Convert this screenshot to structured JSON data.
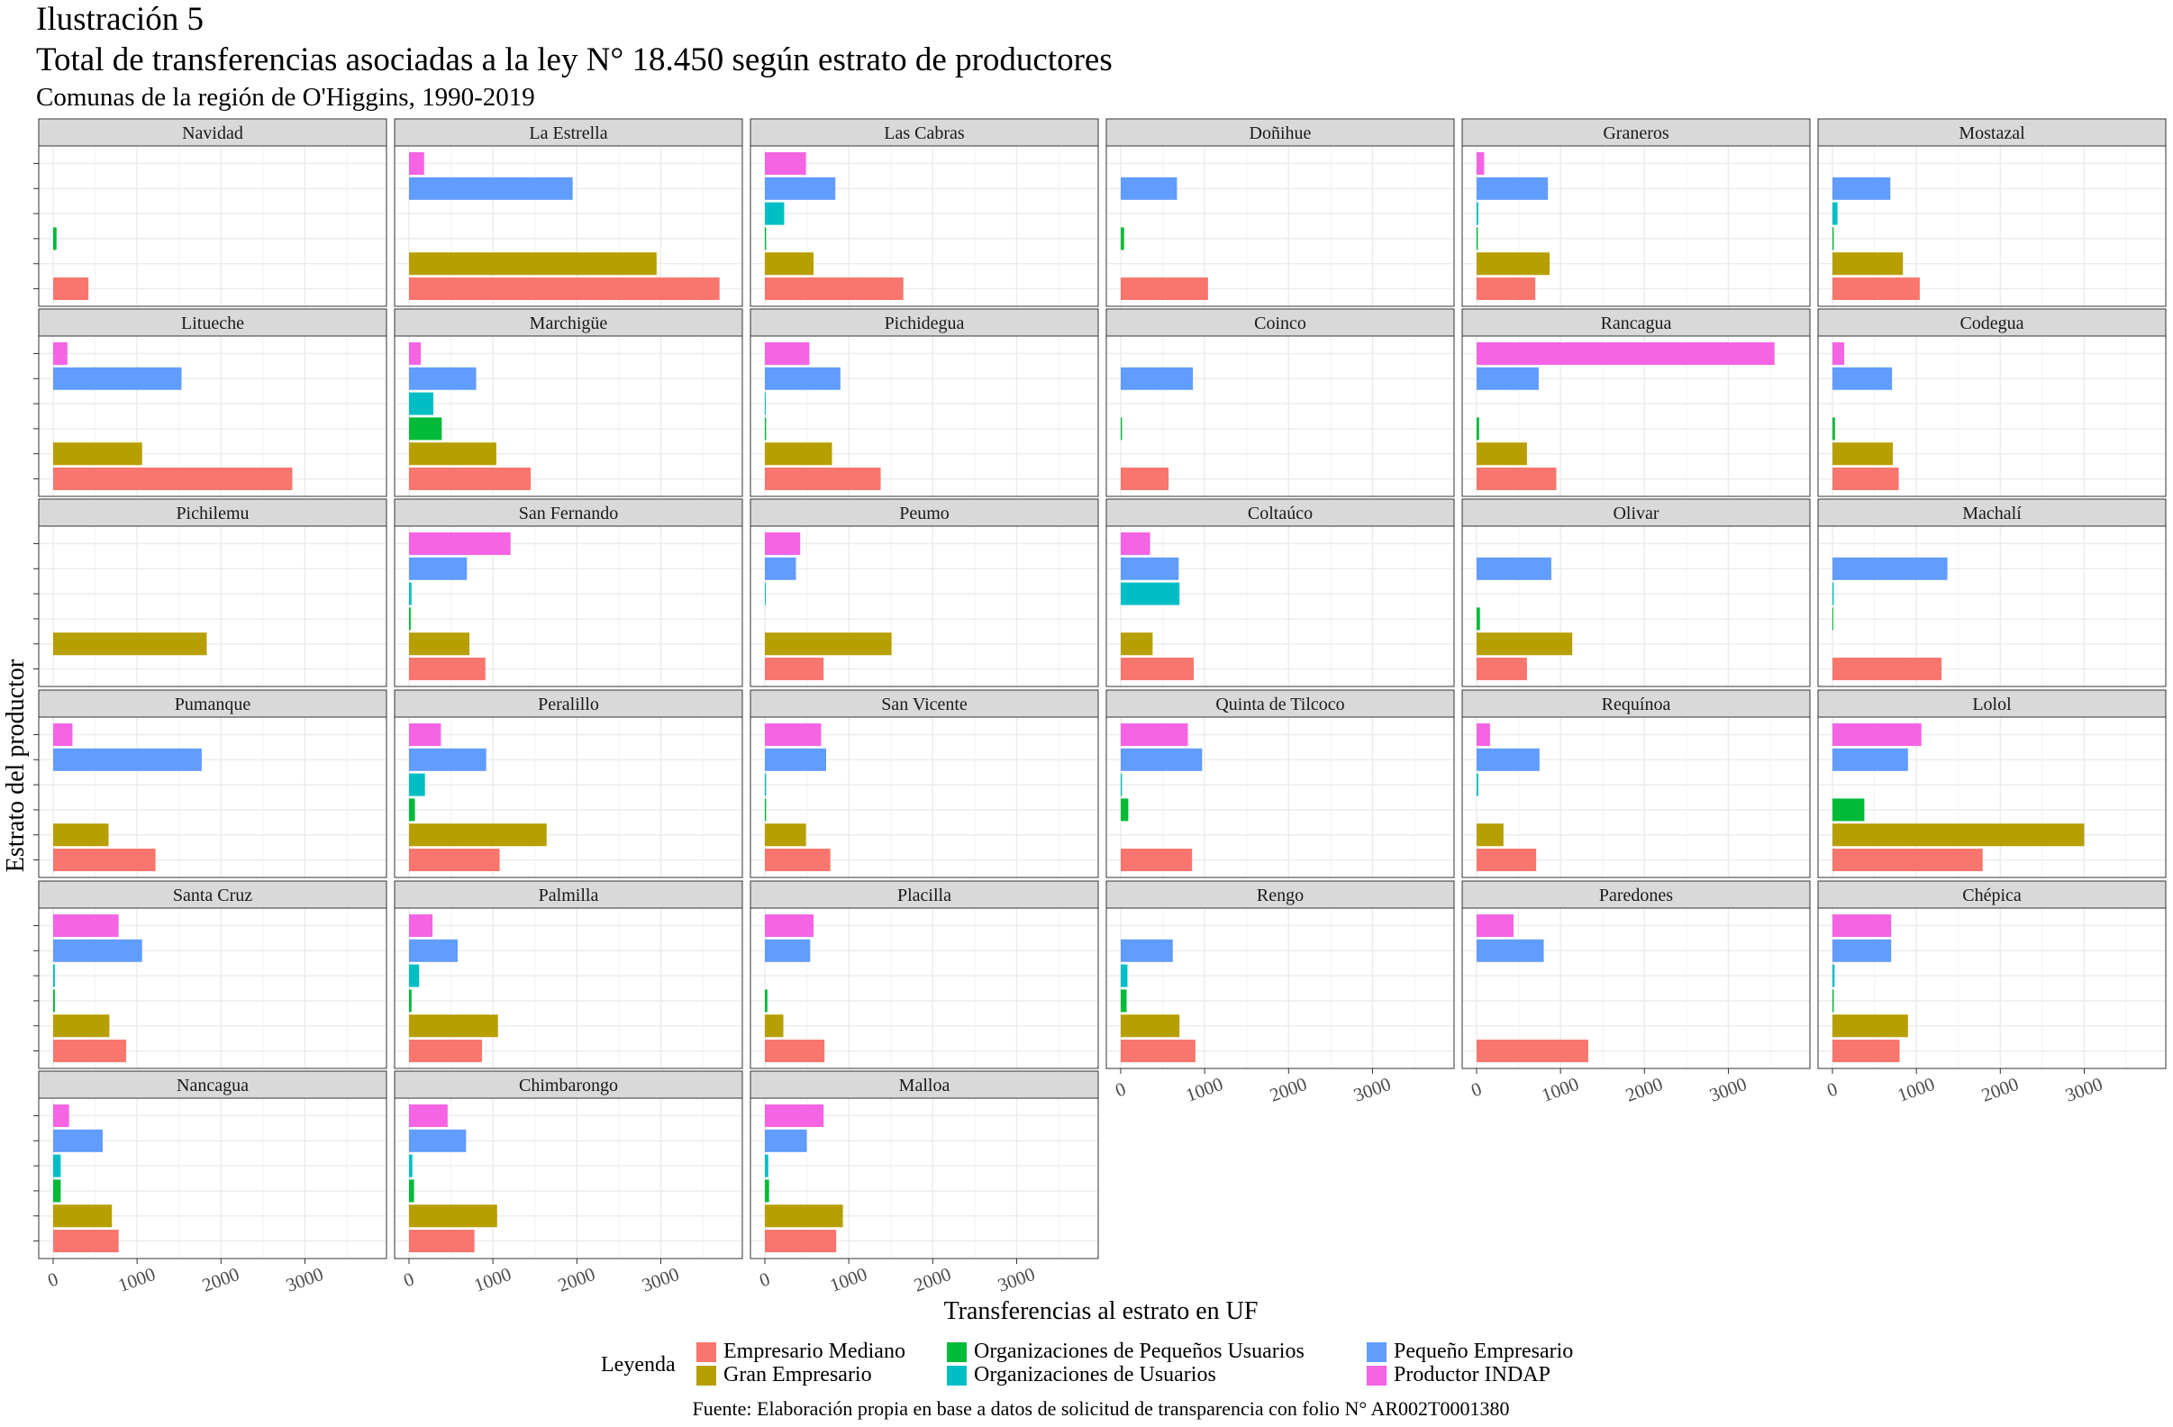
{
  "header": {
    "label": "Ilustración 5",
    "title": "Total de transferencias asociadas a la ley N° 18.450 según estrato de productores",
    "subtitle": "Comunas de la región de O'Higgins, 1990-2019"
  },
  "caption": "Fuente: Elaboración propia en base a datos de solicitud de transparencia con folio N° AR002T0001380",
  "legend": {
    "title": "Leyenda",
    "items": [
      {
        "label": "Empresario Mediano",
        "color": "#F8766D"
      },
      {
        "label": "Gran Empresario",
        "color": "#B79F00"
      },
      {
        "label": "Organizaciones de Pequeños Usuarios",
        "color": "#00BA38"
      },
      {
        "label": "Organizaciones de Usuarios",
        "color": "#00BFC4"
      },
      {
        "label": "Pequeño Empresario",
        "color": "#619CFF"
      },
      {
        "label": "Productor INDAP",
        "color": "#F564E3"
      }
    ]
  },
  "chart_data": {
    "type": "bar",
    "orientation": "horizontal",
    "faceted": true,
    "xlabel": "Transferencias al estrato en UF",
    "ylabel": "Estrato del productor",
    "xlim": [
      0,
      3800
    ],
    "xticks": [
      "0",
      "1000",
      "2000",
      "3000"
    ],
    "grid": true,
    "legend_position": "bottom",
    "categories": [
      "Empresario Mediano",
      "Gran Empresario",
      "Organizaciones de Pequeños Usuarios",
      "Organizaciones de Usuarios",
      "Pequeño Empresario",
      "Productor INDAP"
    ],
    "facets": [
      {
        "name": "Navidad",
        "values": [
          420,
          0,
          40,
          0,
          0,
          0
        ]
      },
      {
        "name": "La Estrella",
        "values": [
          3700,
          2950,
          0,
          0,
          1950,
          180
        ]
      },
      {
        "name": "Las Cabras",
        "values": [
          1650,
          580,
          15,
          230,
          840,
          490
        ]
      },
      {
        "name": "Doñihue",
        "values": [
          1040,
          0,
          40,
          0,
          670,
          0
        ]
      },
      {
        "name": "Graneros",
        "values": [
          700,
          870,
          15,
          20,
          850,
          90
        ]
      },
      {
        "name": "Mostazal",
        "values": [
          1040,
          840,
          15,
          60,
          690,
          0
        ]
      },
      {
        "name": "Litueche",
        "values": [
          2850,
          1060,
          0,
          0,
          1530,
          170
        ]
      },
      {
        "name": "Marchigüe",
        "values": [
          1450,
          1040,
          390,
          290,
          800,
          140
        ]
      },
      {
        "name": "Pichidegua",
        "values": [
          1380,
          800,
          15,
          10,
          900,
          530
        ]
      },
      {
        "name": "Coinco",
        "values": [
          570,
          0,
          15,
          0,
          860,
          0
        ]
      },
      {
        "name": "Rancagua",
        "values": [
          950,
          600,
          30,
          0,
          740,
          3550
        ]
      },
      {
        "name": "Codegua",
        "values": [
          790,
          720,
          30,
          0,
          710,
          140
        ]
      },
      {
        "name": "Pichilemu",
        "values": [
          0,
          1830,
          0,
          0,
          0,
          0
        ]
      },
      {
        "name": "San Fernando",
        "values": [
          910,
          720,
          20,
          30,
          690,
          1210
        ]
      },
      {
        "name": "Peumo",
        "values": [
          700,
          1510,
          0,
          10,
          370,
          420
        ]
      },
      {
        "name": "Coltaúco",
        "values": [
          870,
          380,
          0,
          700,
          690,
          350
        ]
      },
      {
        "name": "Olivar",
        "values": [
          600,
          1140,
          40,
          0,
          890,
          0
        ]
      },
      {
        "name": "Machalí",
        "values": [
          1300,
          0,
          10,
          15,
          1370,
          0
        ]
      },
      {
        "name": "Pumanque",
        "values": [
          1220,
          660,
          0,
          0,
          1770,
          230
        ]
      },
      {
        "name": "Peralillo",
        "values": [
          1080,
          1640,
          70,
          190,
          920,
          380
        ]
      },
      {
        "name": "San Vicente",
        "values": [
          780,
          490,
          15,
          15,
          730,
          670
        ]
      },
      {
        "name": "Quinta de Tilcoco",
        "values": [
          850,
          0,
          90,
          15,
          970,
          800
        ]
      },
      {
        "name": "Requínoa",
        "values": [
          710,
          320,
          0,
          20,
          750,
          160
        ]
      },
      {
        "name": "Lolol",
        "values": [
          1790,
          3000,
          380,
          0,
          900,
          1060
        ]
      },
      {
        "name": "Santa Cruz",
        "values": [
          870,
          670,
          20,
          20,
          1060,
          780
        ]
      },
      {
        "name": "Palmilla",
        "values": [
          870,
          1060,
          30,
          120,
          580,
          280
        ]
      },
      {
        "name": "Placilla",
        "values": [
          710,
          220,
          30,
          0,
          540,
          580
        ]
      },
      {
        "name": "Rengo",
        "values": [
          890,
          700,
          70,
          80,
          620,
          0
        ]
      },
      {
        "name": "Paredones",
        "values": [
          1330,
          0,
          0,
          0,
          800,
          440
        ]
      },
      {
        "name": "Chépica",
        "values": [
          800,
          900,
          15,
          25,
          700,
          700
        ]
      },
      {
        "name": "Nancagua",
        "values": [
          780,
          700,
          90,
          90,
          590,
          190
        ]
      },
      {
        "name": "Chimbarongo",
        "values": [
          780,
          1050,
          60,
          40,
          680,
          460
        ]
      },
      {
        "name": "Malloa",
        "values": [
          850,
          930,
          50,
          40,
          500,
          700
        ]
      }
    ]
  }
}
